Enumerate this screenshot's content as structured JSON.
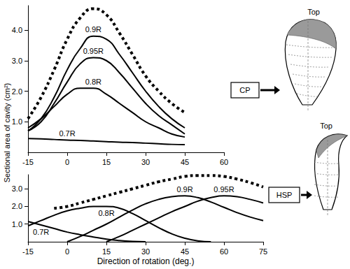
{
  "chart_data": [
    {
      "type": "line",
      "panel_label": "CP",
      "sketch_label": "Top",
      "ylabel": "Sectional area of cavity (cm²)",
      "grid": false,
      "x": [
        -15,
        -10,
        -5,
        0,
        5,
        10,
        15,
        20,
        25,
        30,
        35,
        40,
        45
      ],
      "xlim": [
        -15,
        60
      ],
      "xticks": [
        -15,
        0,
        15,
        30,
        45,
        60
      ],
      "ylim": [
        0,
        4.8
      ],
      "yticks": [
        {
          "value": 1,
          "label": "1.0"
        },
        {
          "value": 2,
          "label": "2.0"
        },
        {
          "value": 3,
          "label": "3.0"
        },
        {
          "value": 4,
          "label": "4.0"
        }
      ],
      "series": [
        {
          "color": "#000000",
          "line_style": "dotted",
          "values": [
            1.1,
            1.8,
            2.7,
            3.7,
            4.4,
            4.7,
            4.5,
            3.9,
            3.2,
            2.5,
            2.0,
            1.6,
            1.3
          ]
        },
        {
          "name": "0.9R",
          "color": "#000000",
          "line_style": "solid",
          "values": [
            0.7,
            1.1,
            1.8,
            2.7,
            3.4,
            3.8,
            3.7,
            3.2,
            2.6,
            2.0,
            1.5,
            1.1,
            0.8
          ]
        },
        {
          "name": "0.95R",
          "color": "#000000",
          "line_style": "solid",
          "values": [
            0.7,
            1.0,
            1.6,
            2.3,
            2.9,
            3.1,
            3.0,
            2.6,
            2.1,
            1.6,
            1.2,
            0.9,
            0.6
          ]
        },
        {
          "name": "0.8R",
          "color": "#000000",
          "line_style": "solid",
          "values": [
            0.8,
            1.1,
            1.5,
            1.9,
            2.1,
            2.1,
            1.9,
            1.6,
            1.3,
            1.0,
            0.8,
            0.6,
            0.5
          ]
        },
        {
          "name": "0.7R",
          "color": "#000000",
          "line_style": "solid",
          "values": [
            0.45,
            0.44,
            0.42,
            0.4,
            0.39,
            0.37,
            0.35,
            0.33,
            0.32,
            0.3,
            0.28,
            0.26,
            0.25
          ]
        }
      ]
    },
    {
      "type": "line",
      "panel_label": "HSP",
      "sketch_label": "Top",
      "xlabel": "Direction of rotation (deg.)",
      "grid": false,
      "x": [
        -15,
        -10,
        -5,
        0,
        5,
        10,
        15,
        20,
        25,
        30,
        35,
        40,
        45,
        50,
        55,
        60,
        65,
        70,
        75
      ],
      "xlim": [
        -15,
        75
      ],
      "xticks": [
        -15,
        0,
        15,
        30,
        45,
        60,
        75
      ],
      "ylim": [
        0,
        3.8
      ],
      "yticks": [
        {
          "value": 1,
          "label": "1.0"
        },
        {
          "value": 2,
          "label": "2.0"
        },
        {
          "value": 3,
          "label": "3.0"
        }
      ],
      "series": [
        {
          "color": "#000000",
          "line_style": "dotted",
          "values": [
            null,
            null,
            1.9,
            2.0,
            2.2,
            2.4,
            2.6,
            2.8,
            3.0,
            3.2,
            3.4,
            3.55,
            3.7,
            3.75,
            3.75,
            3.7,
            3.55,
            3.35,
            3.1
          ]
        },
        {
          "name": "0.8R",
          "color": "#000000",
          "line_style": "solid",
          "values": [
            0.9,
            1.2,
            1.5,
            1.75,
            1.9,
            2.0,
            2.0,
            1.9,
            1.6,
            1.2,
            0.8,
            0.45,
            0.2,
            0.05,
            0,
            null,
            null,
            null,
            null
          ]
        },
        {
          "name": "0.7R",
          "color": "#000000",
          "line_style": "solid",
          "values": [
            1.15,
            0.95,
            0.75,
            0.55,
            0.4,
            0.27,
            0.15,
            0.07,
            0.02,
            0,
            null,
            null,
            null,
            null,
            null,
            null,
            null,
            null,
            null
          ]
        },
        {
          "name": "0.9R",
          "color": "#000000",
          "line_style": "solid",
          "values": [
            null,
            null,
            null,
            0,
            0.3,
            0.65,
            1.0,
            1.4,
            1.8,
            2.15,
            2.4,
            2.55,
            2.6,
            2.5,
            2.25,
            1.95,
            1.65,
            1.4,
            1.2
          ]
        },
        {
          "name": "0.95R",
          "color": "#000000",
          "line_style": "solid",
          "values": [
            null,
            null,
            null,
            null,
            null,
            null,
            0,
            0.3,
            0.65,
            1.0,
            1.35,
            1.7,
            2.0,
            2.3,
            2.5,
            2.6,
            2.55,
            2.4,
            2.2
          ]
        }
      ]
    }
  ]
}
